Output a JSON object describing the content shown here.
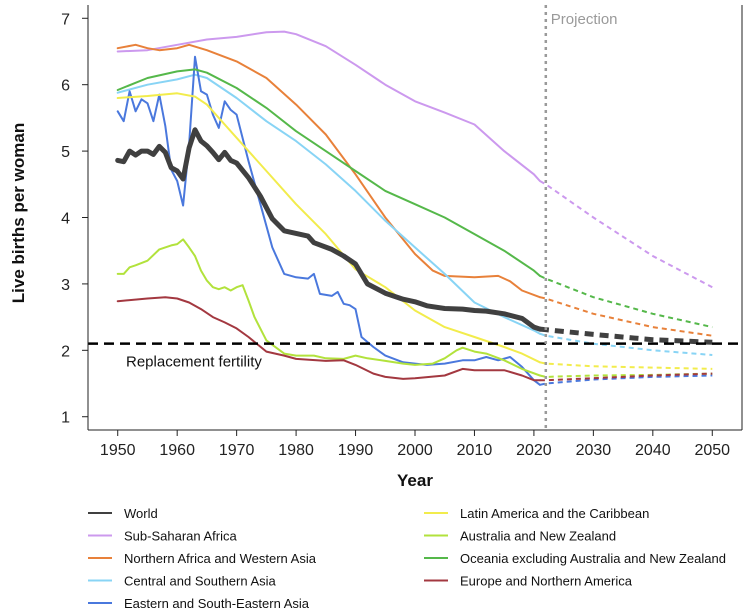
{
  "chart_data": {
    "type": "line",
    "xlabel": "Year",
    "ylabel": "Live births per woman",
    "xlim": [
      1945,
      2055
    ],
    "ylim": [
      0.8,
      7.2
    ],
    "xticks": [
      1950,
      1960,
      1970,
      1980,
      1990,
      2000,
      2010,
      2020,
      2030,
      2040,
      2050
    ],
    "yticks": [
      1,
      2,
      3,
      4,
      5,
      6,
      7
    ],
    "grid": false,
    "legend_placement": "bottom",
    "projection_start": 2022,
    "projection_label": "Projection",
    "reference_line": {
      "label": "Replacement fertility",
      "value": 2.1
    },
    "series": [
      {
        "name": "World",
        "color": "#404040",
        "width": 5,
        "values": [
          [
            1950,
            4.86
          ],
          [
            1951,
            4.84
          ],
          [
            1952,
            5.0
          ],
          [
            1953,
            4.94
          ],
          [
            1954,
            5.0
          ],
          [
            1955,
            5.0
          ],
          [
            1956,
            4.95
          ],
          [
            1957,
            5.07
          ],
          [
            1958,
            4.98
          ],
          [
            1959,
            4.75
          ],
          [
            1960,
            4.7
          ],
          [
            1961,
            4.58
          ],
          [
            1962,
            5.05
          ],
          [
            1963,
            5.32
          ],
          [
            1964,
            5.15
          ],
          [
            1965,
            5.08
          ],
          [
            1966,
            4.98
          ],
          [
            1967,
            4.87
          ],
          [
            1968,
            4.98
          ],
          [
            1969,
            4.86
          ],
          [
            1970,
            4.82
          ],
          [
            1972,
            4.6
          ],
          [
            1974,
            4.32
          ],
          [
            1976,
            3.98
          ],
          [
            1978,
            3.8
          ],
          [
            1980,
            3.76
          ],
          [
            1982,
            3.72
          ],
          [
            1983,
            3.62
          ],
          [
            1986,
            3.52
          ],
          [
            1988,
            3.42
          ],
          [
            1990,
            3.3
          ],
          [
            1992,
            3.0
          ],
          [
            1995,
            2.86
          ],
          [
            1998,
            2.77
          ],
          [
            2000,
            2.73
          ],
          [
            2002,
            2.67
          ],
          [
            2005,
            2.63
          ],
          [
            2008,
            2.62
          ],
          [
            2010,
            2.6
          ],
          [
            2012,
            2.59
          ],
          [
            2015,
            2.55
          ],
          [
            2018,
            2.48
          ],
          [
            2020,
            2.35
          ],
          [
            2021,
            2.32
          ]
        ],
        "projection": [
          [
            2022,
            2.31
          ],
          [
            2030,
            2.24
          ],
          [
            2040,
            2.16
          ],
          [
            2050,
            2.12
          ]
        ]
      },
      {
        "name": "Sub-Saharan Africa",
        "color": "#cc99ee",
        "width": 2,
        "values": [
          [
            1950,
            6.5
          ],
          [
            1955,
            6.52
          ],
          [
            1960,
            6.6
          ],
          [
            1965,
            6.68
          ],
          [
            1970,
            6.72
          ],
          [
            1975,
            6.79
          ],
          [
            1978,
            6.8
          ],
          [
            1980,
            6.76
          ],
          [
            1985,
            6.58
          ],
          [
            1990,
            6.3
          ],
          [
            1995,
            6.0
          ],
          [
            2000,
            5.75
          ],
          [
            2005,
            5.58
          ],
          [
            2010,
            5.4
          ],
          [
            2015,
            5.0
          ],
          [
            2020,
            4.65
          ],
          [
            2021,
            4.55
          ]
        ],
        "projection": [
          [
            2022,
            4.5
          ],
          [
            2030,
            4.0
          ],
          [
            2040,
            3.42
          ],
          [
            2050,
            2.95
          ]
        ]
      },
      {
        "name": "Northern Africa and Western Asia",
        "color": "#e8813a",
        "width": 2,
        "values": [
          [
            1950,
            6.55
          ],
          [
            1953,
            6.6
          ],
          [
            1955,
            6.55
          ],
          [
            1957,
            6.52
          ],
          [
            1960,
            6.55
          ],
          [
            1962,
            6.6
          ],
          [
            1965,
            6.52
          ],
          [
            1970,
            6.35
          ],
          [
            1975,
            6.1
          ],
          [
            1980,
            5.7
          ],
          [
            1985,
            5.25
          ],
          [
            1990,
            4.65
          ],
          [
            1995,
            4.0
          ],
          [
            2000,
            3.45
          ],
          [
            2003,
            3.2
          ],
          [
            2005,
            3.12
          ],
          [
            2010,
            3.1
          ],
          [
            2014,
            3.12
          ],
          [
            2016,
            3.04
          ],
          [
            2018,
            2.9
          ],
          [
            2021,
            2.8
          ]
        ],
        "projection": [
          [
            2022,
            2.78
          ],
          [
            2030,
            2.55
          ],
          [
            2040,
            2.35
          ],
          [
            2050,
            2.22
          ]
        ]
      },
      {
        "name": "Central and Southern Asia",
        "color": "#88d4f5",
        "width": 2,
        "values": [
          [
            1950,
            5.88
          ],
          [
            1955,
            6.0
          ],
          [
            1960,
            6.08
          ],
          [
            1963,
            6.15
          ],
          [
            1965,
            6.1
          ],
          [
            1970,
            5.8
          ],
          [
            1975,
            5.45
          ],
          [
            1980,
            5.15
          ],
          [
            1985,
            4.8
          ],
          [
            1990,
            4.4
          ],
          [
            1995,
            3.95
          ],
          [
            2000,
            3.55
          ],
          [
            2005,
            3.15
          ],
          [
            2010,
            2.72
          ],
          [
            2015,
            2.5
          ],
          [
            2020,
            2.3
          ],
          [
            2021,
            2.25
          ]
        ],
        "projection": [
          [
            2022,
            2.22
          ],
          [
            2030,
            2.1
          ],
          [
            2040,
            2.0
          ],
          [
            2050,
            1.93
          ]
        ]
      },
      {
        "name": "Eastern and South-Eastern Asia",
        "color": "#4a78dd",
        "width": 2,
        "values": [
          [
            1950,
            5.6
          ],
          [
            1951,
            5.45
          ],
          [
            1952,
            5.9
          ],
          [
            1953,
            5.6
          ],
          [
            1954,
            5.78
          ],
          [
            1955,
            5.72
          ],
          [
            1956,
            5.45
          ],
          [
            1957,
            5.85
          ],
          [
            1958,
            5.38
          ],
          [
            1959,
            4.72
          ],
          [
            1960,
            4.55
          ],
          [
            1961,
            4.18
          ],
          [
            1962,
            5.1
          ],
          [
            1963,
            6.42
          ],
          [
            1964,
            5.9
          ],
          [
            1965,
            5.85
          ],
          [
            1966,
            5.55
          ],
          [
            1967,
            5.35
          ],
          [
            1968,
            5.75
          ],
          [
            1969,
            5.62
          ],
          [
            1970,
            5.55
          ],
          [
            1972,
            4.85
          ],
          [
            1974,
            4.2
          ],
          [
            1976,
            3.55
          ],
          [
            1978,
            3.15
          ],
          [
            1980,
            3.1
          ],
          [
            1982,
            3.08
          ],
          [
            1983,
            3.15
          ],
          [
            1984,
            2.85
          ],
          [
            1986,
            2.82
          ],
          [
            1987,
            2.88
          ],
          [
            1988,
            2.7
          ],
          [
            1989,
            2.68
          ],
          [
            1990,
            2.62
          ],
          [
            1991,
            2.2
          ],
          [
            1993,
            2.05
          ],
          [
            1995,
            1.92
          ],
          [
            1998,
            1.82
          ],
          [
            2000,
            1.8
          ],
          [
            2002,
            1.78
          ],
          [
            2005,
            1.8
          ],
          [
            2008,
            1.85
          ],
          [
            2010,
            1.85
          ],
          [
            2012,
            1.9
          ],
          [
            2014,
            1.85
          ],
          [
            2016,
            1.9
          ],
          [
            2018,
            1.75
          ],
          [
            2020,
            1.55
          ],
          [
            2021,
            1.48
          ]
        ],
        "projection": [
          [
            2022,
            1.5
          ],
          [
            2030,
            1.56
          ],
          [
            2040,
            1.6
          ],
          [
            2050,
            1.62
          ]
        ]
      },
      {
        "name": "Latin America and the Caribbean",
        "color": "#f2ec4c",
        "width": 2,
        "values": [
          [
            1950,
            5.8
          ],
          [
            1955,
            5.83
          ],
          [
            1960,
            5.87
          ],
          [
            1963,
            5.82
          ],
          [
            1965,
            5.7
          ],
          [
            1970,
            5.2
          ],
          [
            1975,
            4.7
          ],
          [
            1980,
            4.2
          ],
          [
            1985,
            3.75
          ],
          [
            1990,
            3.22
          ],
          [
            1995,
            2.95
          ],
          [
            2000,
            2.6
          ],
          [
            2005,
            2.35
          ],
          [
            2010,
            2.2
          ],
          [
            2015,
            2.05
          ],
          [
            2018,
            1.95
          ],
          [
            2021,
            1.82
          ]
        ],
        "projection": [
          [
            2022,
            1.8
          ],
          [
            2030,
            1.76
          ],
          [
            2040,
            1.74
          ],
          [
            2050,
            1.72
          ]
        ]
      },
      {
        "name": "Australia and New Zealand",
        "color": "#b2e23c",
        "width": 2,
        "values": [
          [
            1950,
            3.15
          ],
          [
            1951,
            3.15
          ],
          [
            1952,
            3.25
          ],
          [
            1953,
            3.28
          ],
          [
            1955,
            3.35
          ],
          [
            1957,
            3.52
          ],
          [
            1959,
            3.58
          ],
          [
            1960,
            3.6
          ],
          [
            1961,
            3.67
          ],
          [
            1962,
            3.55
          ],
          [
            1963,
            3.42
          ],
          [
            1964,
            3.2
          ],
          [
            1965,
            3.05
          ],
          [
            1966,
            2.95
          ],
          [
            1967,
            2.92
          ],
          [
            1968,
            2.95
          ],
          [
            1969,
            2.9
          ],
          [
            1970,
            2.95
          ],
          [
            1971,
            2.98
          ],
          [
            1972,
            2.75
          ],
          [
            1973,
            2.5
          ],
          [
            1975,
            2.15
          ],
          [
            1978,
            1.95
          ],
          [
            1980,
            1.92
          ],
          [
            1983,
            1.92
          ],
          [
            1985,
            1.88
          ],
          [
            1988,
            1.87
          ],
          [
            1990,
            1.92
          ],
          [
            1992,
            1.88
          ],
          [
            1995,
            1.84
          ],
          [
            1998,
            1.8
          ],
          [
            2000,
            1.78
          ],
          [
            2003,
            1.8
          ],
          [
            2005,
            1.88
          ],
          [
            2007,
            2.0
          ],
          [
            2008,
            2.04
          ],
          [
            2010,
            1.98
          ],
          [
            2012,
            1.95
          ],
          [
            2015,
            1.85
          ],
          [
            2018,
            1.72
          ],
          [
            2021,
            1.62
          ]
        ],
        "projection": [
          [
            2022,
            1.6
          ],
          [
            2030,
            1.62
          ],
          [
            2040,
            1.63
          ],
          [
            2050,
            1.65
          ]
        ]
      },
      {
        "name": "Oceania excluding Australia and New Zealand",
        "color": "#55b84a",
        "width": 2,
        "values": [
          [
            1950,
            5.92
          ],
          [
            1955,
            6.1
          ],
          [
            1960,
            6.2
          ],
          [
            1963,
            6.23
          ],
          [
            1965,
            6.18
          ],
          [
            1970,
            5.95
          ],
          [
            1975,
            5.65
          ],
          [
            1980,
            5.3
          ],
          [
            1985,
            5.0
          ],
          [
            1990,
            4.7
          ],
          [
            1995,
            4.4
          ],
          [
            2000,
            4.2
          ],
          [
            2005,
            4.0
          ],
          [
            2010,
            3.75
          ],
          [
            2015,
            3.5
          ],
          [
            2020,
            3.2
          ],
          [
            2021,
            3.12
          ]
        ],
        "projection": [
          [
            2022,
            3.08
          ],
          [
            2030,
            2.8
          ],
          [
            2040,
            2.55
          ],
          [
            2050,
            2.35
          ]
        ]
      },
      {
        "name": "Europe and Northern America",
        "color": "#a33840",
        "width": 2,
        "values": [
          [
            1950,
            2.74
          ],
          [
            1955,
            2.78
          ],
          [
            1958,
            2.8
          ],
          [
            1960,
            2.78
          ],
          [
            1962,
            2.72
          ],
          [
            1964,
            2.62
          ],
          [
            1966,
            2.5
          ],
          [
            1968,
            2.42
          ],
          [
            1970,
            2.33
          ],
          [
            1972,
            2.2
          ],
          [
            1975,
            1.98
          ],
          [
            1978,
            1.92
          ],
          [
            1980,
            1.87
          ],
          [
            1985,
            1.84
          ],
          [
            1988,
            1.85
          ],
          [
            1990,
            1.78
          ],
          [
            1993,
            1.65
          ],
          [
            1995,
            1.6
          ],
          [
            1998,
            1.57
          ],
          [
            2000,
            1.58
          ],
          [
            2005,
            1.62
          ],
          [
            2008,
            1.72
          ],
          [
            2010,
            1.7
          ],
          [
            2013,
            1.7
          ],
          [
            2015,
            1.7
          ],
          [
            2018,
            1.62
          ],
          [
            2020,
            1.55
          ],
          [
            2021,
            1.55
          ]
        ],
        "projection": [
          [
            2022,
            1.55
          ],
          [
            2030,
            1.58
          ],
          [
            2040,
            1.62
          ],
          [
            2050,
            1.65
          ]
        ]
      }
    ]
  }
}
